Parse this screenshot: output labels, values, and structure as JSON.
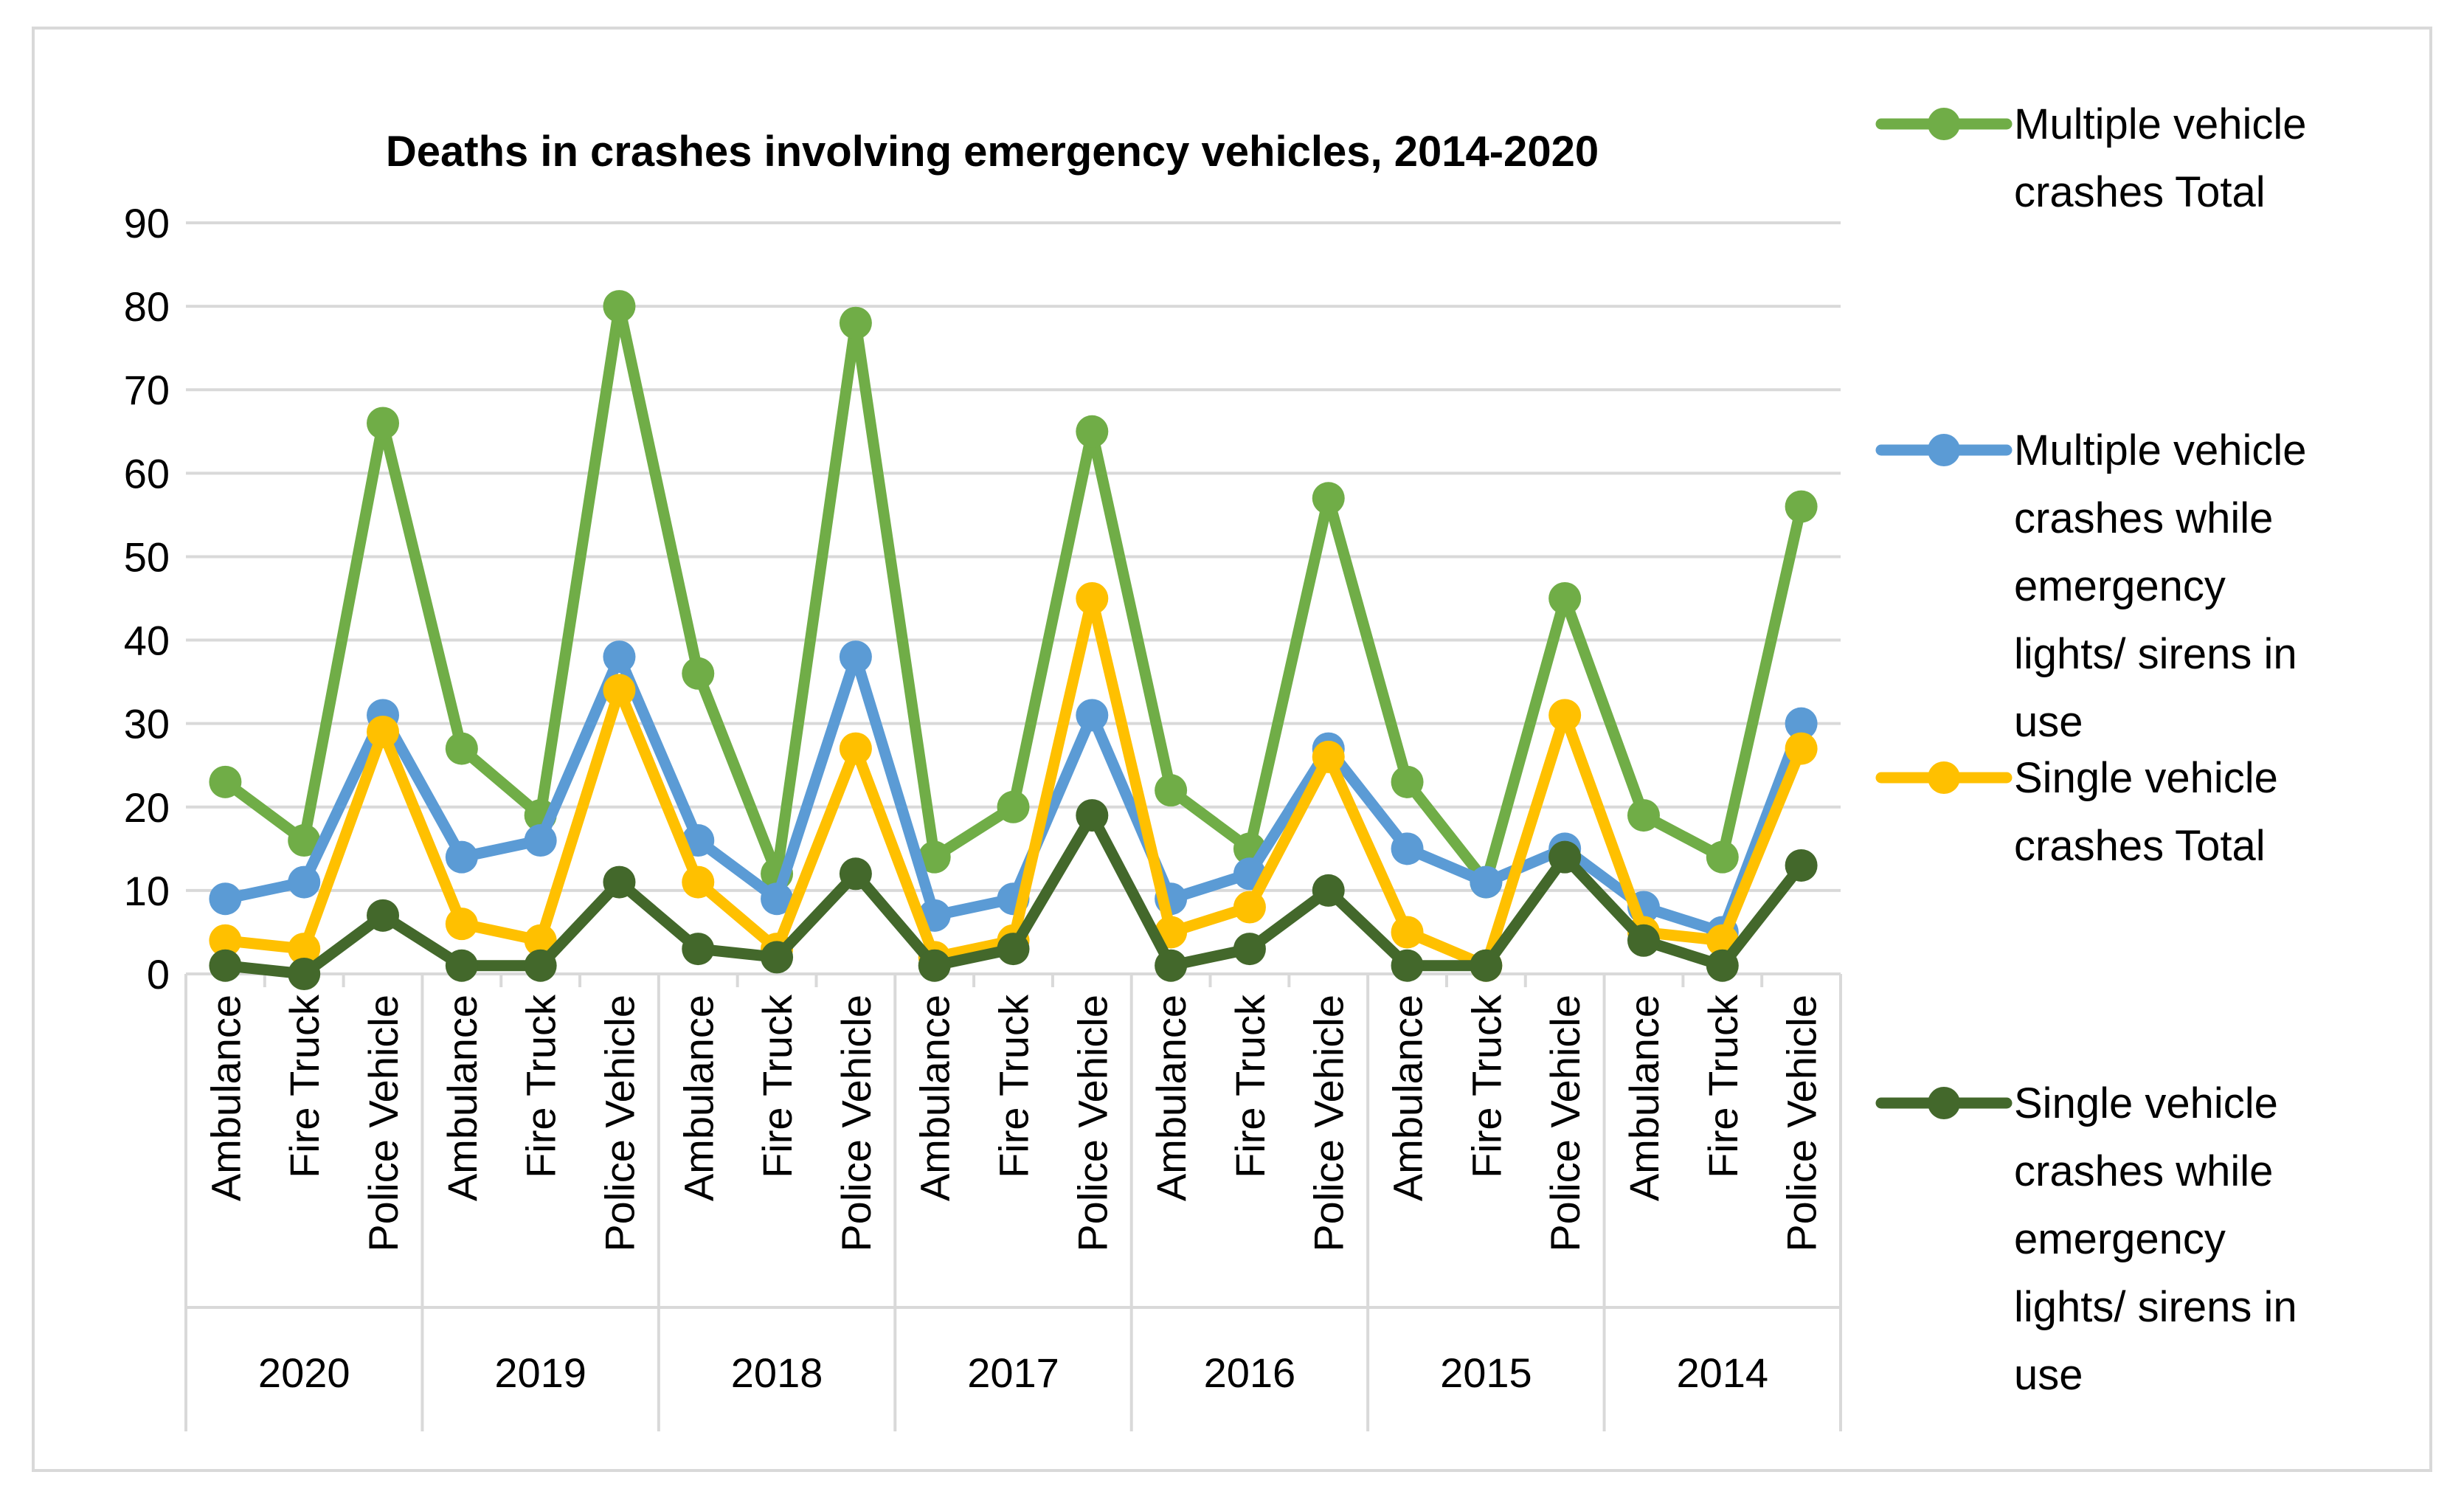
{
  "chart_data": {
    "type": "line",
    "title": "Deaths in crashes involving emergency vehicles, 2014-2020",
    "xlabel": "",
    "ylabel": "",
    "ylim": [
      0,
      90
    ],
    "yticks": [
      0,
      10,
      20,
      30,
      40,
      50,
      60,
      70,
      80,
      90
    ],
    "grid": "horizontal",
    "legend_position": "right",
    "groups": [
      {
        "label": "2020",
        "categories": [
          "Ambulance",
          "Fire Truck",
          "Police Vehicle"
        ]
      },
      {
        "label": "2019",
        "categories": [
          "Ambulance",
          "Fire Truck",
          "Police Vehicle"
        ]
      },
      {
        "label": "2018",
        "categories": [
          "Ambulance",
          "Fire Truck",
          "Police Vehicle"
        ]
      },
      {
        "label": "2017",
        "categories": [
          "Ambulance",
          "Fire Truck",
          "Police Vehicle"
        ]
      },
      {
        "label": "2016",
        "categories": [
          "Ambulance",
          "Fire Truck",
          "Police Vehicle"
        ]
      },
      {
        "label": "2015",
        "categories": [
          "Ambulance",
          "Fire Truck",
          "Police Vehicle"
        ]
      },
      {
        "label": "2014",
        "categories": [
          "Ambulance",
          "Fire Truck",
          "Police Vehicle"
        ]
      }
    ],
    "series": [
      {
        "name": "Multiple vehicle crashes Total",
        "legend_lines": [
          "Multiple vehicle",
          "crashes Total"
        ],
        "color": "#70ad47",
        "values": [
          23,
          16,
          66,
          27,
          19,
          80,
          36,
          12,
          78,
          14,
          20,
          65,
          22,
          15,
          57,
          23,
          11,
          45,
          19,
          14,
          56
        ]
      },
      {
        "name": "Multiple vehicle crashes while emergency lights/ sirens in use",
        "legend_lines": [
          "Multiple vehicle",
          "crashes while",
          "emergency",
          "lights/ sirens in",
          "use"
        ],
        "color": "#5b9bd5",
        "values": [
          9,
          11,
          31,
          14,
          16,
          38,
          16,
          9,
          38,
          7,
          9,
          31,
          9,
          12,
          27,
          15,
          11,
          15,
          8,
          5,
          30
        ]
      },
      {
        "name": "Single vehicle crashes Total",
        "legend_lines": [
          "Single vehicle",
          "crashes Total"
        ],
        "color": "#ffc000",
        "values": [
          4,
          3,
          29,
          6,
          4,
          34,
          11,
          3,
          27,
          2,
          4,
          45,
          5,
          8,
          26,
          5,
          1,
          31,
          5,
          4,
          27
        ]
      },
      {
        "name": "Single vehicle crashes  while emergency lights/ sirens in use",
        "legend_lines": [
          "Single vehicle",
          "crashes  while",
          "emergency",
          "lights/ sirens in",
          "use"
        ],
        "color": "#43682b",
        "values": [
          1,
          0,
          7,
          1,
          1,
          11,
          3,
          2,
          12,
          1,
          3,
          19,
          1,
          3,
          10,
          1,
          1,
          14,
          4,
          1,
          13
        ]
      }
    ]
  }
}
